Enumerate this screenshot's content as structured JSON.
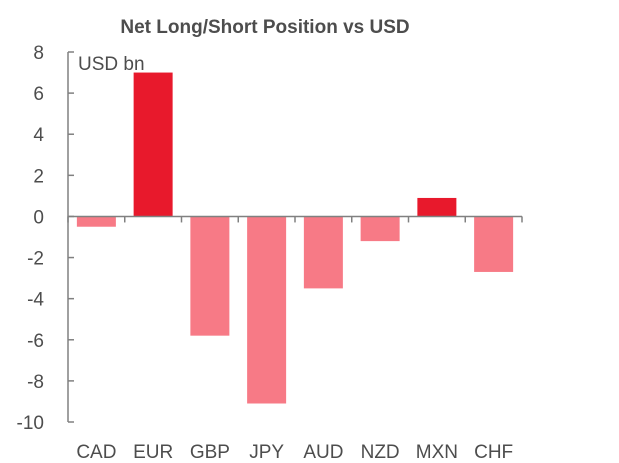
{
  "chart_data": {
    "type": "bar",
    "title": "Net Long/Short Position vs USD",
    "unit_label": "USD bn",
    "categories": [
      "CAD",
      "EUR",
      "GBP",
      "JPY",
      "AUD",
      "NZD",
      "MXN",
      "CHF"
    ],
    "values": [
      -0.5,
      7.0,
      -5.8,
      -9.1,
      -3.5,
      -1.2,
      0.9,
      -2.7
    ],
    "ylim": [
      -10,
      8
    ],
    "yticks": [
      "8",
      "6",
      "4",
      "2",
      "0",
      "-2",
      "-4",
      "-6",
      "-8",
      "-10"
    ],
    "grid": false,
    "legend": "none",
    "colors": {
      "positive": "#e8192c",
      "negative": "#f77a86",
      "axis": "#808080",
      "text": "#4d4d4d"
    }
  }
}
